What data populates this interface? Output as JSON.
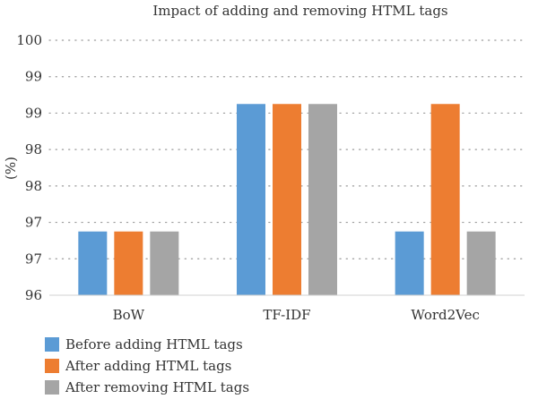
{
  "chart_data": {
    "type": "bar",
    "title": "Impact of adding and removing HTML tags",
    "xlabel": "",
    "ylabel": "(%)",
    "categories": [
      "BoW",
      "TF-IDF",
      "Word2Vec"
    ],
    "series": [
      {
        "name": "Before adding HTML tags",
        "values": [
          97,
          99,
          97
        ],
        "color": "#5b9bd5"
      },
      {
        "name": "After adding HTML tags",
        "values": [
          97,
          99,
          99
        ],
        "color": "#ed7d31"
      },
      {
        "name": "After removing HTML tags",
        "values": [
          97,
          99,
          97
        ],
        "color": "#a5a5a5"
      }
    ],
    "ylim": [
      96,
      100
    ],
    "y_tick_labels": [
      "96",
      "97",
      "97",
      "98",
      "98",
      "99",
      "99",
      "100"
    ],
    "grid": true,
    "legend_placement": "bottom-left"
  }
}
